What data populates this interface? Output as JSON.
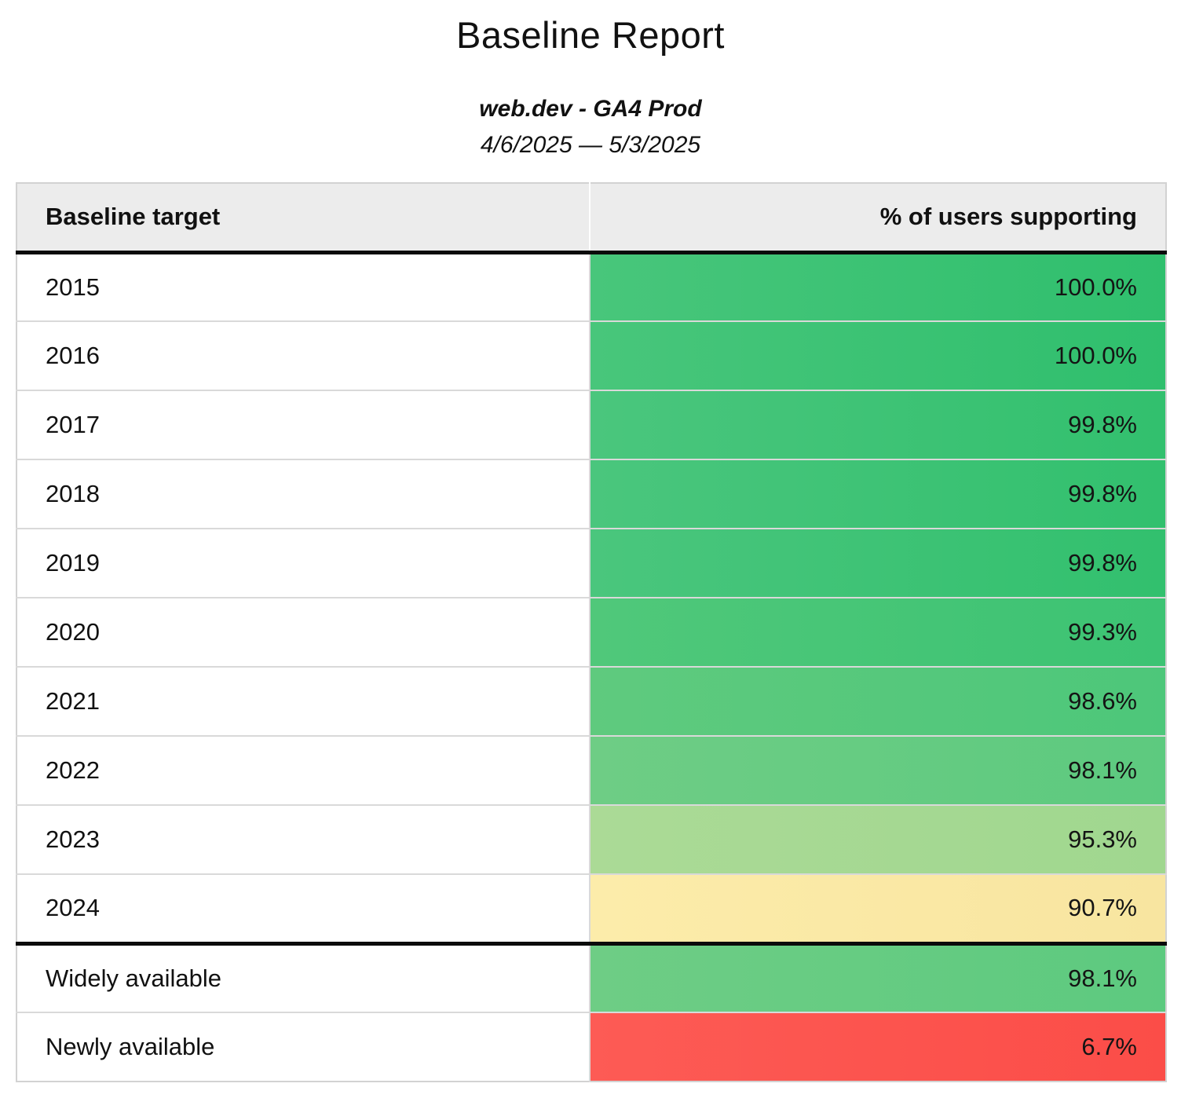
{
  "report": {
    "title": "Baseline Report",
    "subtitle": "web.dev - GA4 Prod",
    "date_range": "4/6/2025 — 5/3/2025"
  },
  "table": {
    "col_target": "Baseline target",
    "col_support": "% of users supporting",
    "header_bg": "#ececec",
    "rows": [
      {
        "label": "2015",
        "value": "100.0%",
        "bg": {
          "left": "#48c67b",
          "right": "#2fbf6d"
        }
      },
      {
        "label": "2016",
        "value": "100.0%",
        "bg": {
          "left": "#48c67b",
          "right": "#2fbf6d"
        }
      },
      {
        "label": "2017",
        "value": "99.8%",
        "bg": {
          "left": "#4ac67d",
          "right": "#32c06e"
        }
      },
      {
        "label": "2018",
        "value": "99.8%",
        "bg": {
          "left": "#4ac67d",
          "right": "#32c06e"
        }
      },
      {
        "label": "2019",
        "value": "99.8%",
        "bg": {
          "left": "#4ac67d",
          "right": "#32c06e"
        }
      },
      {
        "label": "2020",
        "value": "99.3%",
        "bg": {
          "left": "#50c87a",
          "right": "#3cc373"
        }
      },
      {
        "label": "2021",
        "value": "98.6%",
        "bg": {
          "left": "#5fca7e",
          "right": "#4dc77a"
        }
      },
      {
        "label": "2022",
        "value": "98.1%",
        "bg": {
          "left": "#6ecd85",
          "right": "#5dca7f"
        }
      },
      {
        "label": "2023",
        "value": "95.3%",
        "bg": {
          "left": "#abda96",
          "right": "#a0d78f"
        }
      },
      {
        "label": "2024",
        "value": "90.7%",
        "bg": {
          "left": "#fcecaa",
          "right": "#f8e5a0"
        }
      },
      {
        "label": "Widely available",
        "value": "98.1%",
        "bg": {
          "left": "#6ecd85",
          "right": "#5dca7f"
        }
      },
      {
        "label": "Newly available",
        "value": "6.7%",
        "bg": {
          "left": "#fd5b55",
          "right": "#fb4d48"
        }
      }
    ]
  },
  "chart_data": {
    "type": "table",
    "title": "Baseline Report",
    "subtitle": "web.dev - GA4 Prod",
    "date_range": "4/6/2025 — 5/3/2025",
    "columns": [
      "Baseline target",
      "% of users supporting"
    ],
    "rows": [
      [
        "2015",
        100.0
      ],
      [
        "2016",
        100.0
      ],
      [
        "2017",
        99.8
      ],
      [
        "2018",
        99.8
      ],
      [
        "2019",
        99.8
      ],
      [
        "2020",
        99.3
      ],
      [
        "2021",
        98.6
      ],
      [
        "2022",
        98.1
      ],
      [
        "2023",
        95.3
      ],
      [
        "2024",
        90.7
      ],
      [
        "Widely available",
        98.1
      ],
      [
        "Newly available",
        6.7
      ]
    ],
    "color_scale": {
      "high": "#2fbf6d",
      "mid": "#f8e5a0",
      "low": "#fb4d48"
    },
    "layout_hints": {
      "value_alignment": "right",
      "heatmap_column": "% of users supporting",
      "divider_after_row": "2024"
    }
  }
}
